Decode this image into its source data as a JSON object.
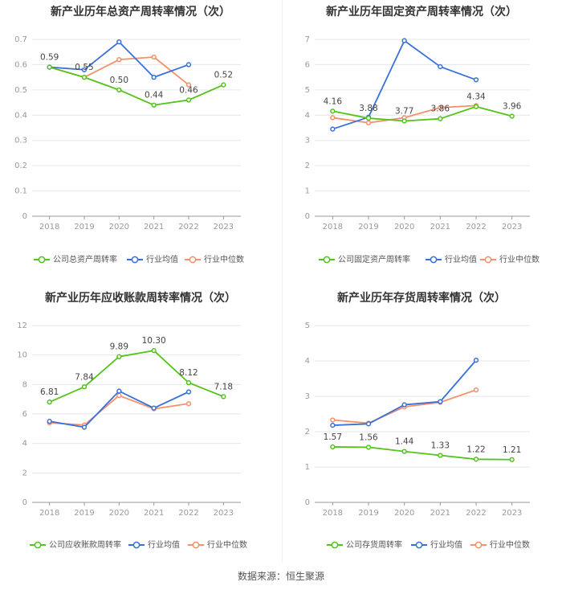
{
  "source": "数据来源：恒生聚源",
  "colors": {
    "company": "#52c41a",
    "avg": "#3a70d9",
    "median": "#f4906a",
    "grid": "#e6e6e6",
    "axis": "#999999"
  },
  "chart_data": [
    {
      "type": "line",
      "title": "新产业历年总资产周转率情况（次）",
      "x": [
        "2018",
        "2019",
        "2020",
        "2021",
        "2022",
        "2023"
      ],
      "yticks": [
        "0",
        "0.1",
        "0.2",
        "0.3",
        "0.4",
        "0.5",
        "0.6",
        "0.7"
      ],
      "ylim": [
        0,
        0.7
      ],
      "legend_placement": "bottom",
      "series": [
        {
          "name": "公司总资产周转率",
          "key": "company",
          "values": [
            0.59,
            0.55,
            0.5,
            0.44,
            0.46,
            0.52
          ],
          "labels": [
            "0.59",
            "0.55",
            "0.50",
            "0.44",
            "0.46",
            "0.52"
          ]
        },
        {
          "name": "行业均值",
          "key": "avg",
          "values": [
            0.59,
            0.58,
            0.69,
            0.55,
            0.6,
            null
          ]
        },
        {
          "name": "行业中位数",
          "key": "median",
          "values": [
            0.59,
            0.55,
            0.62,
            0.63,
            0.52,
            null
          ]
        }
      ]
    },
    {
      "type": "line",
      "title": "新产业历年固定资产周转率情况（次）",
      "x": [
        "2018",
        "2019",
        "2020",
        "2021",
        "2022",
        "2023"
      ],
      "yticks": [
        "0",
        "1",
        "2",
        "3",
        "4",
        "5",
        "6",
        "7"
      ],
      "ylim": [
        0,
        7
      ],
      "legend_placement": "bottom",
      "series": [
        {
          "name": "公司固定资产周转率",
          "key": "company",
          "values": [
            4.16,
            3.88,
            3.77,
            3.86,
            4.34,
            3.96
          ],
          "labels": [
            "4.16",
            "3.88",
            "3.77",
            "3.86",
            "4.34",
            "3.96"
          ]
        },
        {
          "name": "行业均值",
          "key": "avg",
          "values": [
            3.45,
            3.92,
            6.95,
            5.92,
            5.4,
            null
          ]
        },
        {
          "name": "行业中位数",
          "key": "median",
          "values": [
            3.9,
            3.7,
            3.9,
            4.3,
            4.38,
            null
          ]
        }
      ]
    },
    {
      "type": "line",
      "title": "新产业历年应收账款周转率情况（次）",
      "x": [
        "2018",
        "2019",
        "2020",
        "2021",
        "2022",
        "2023"
      ],
      "yticks": [
        "0",
        "2",
        "4",
        "6",
        "8",
        "10",
        "12"
      ],
      "ylim": [
        0,
        12
      ],
      "legend_placement": "bottom",
      "series": [
        {
          "name": "公司应收账款周转率",
          "key": "company",
          "values": [
            6.81,
            7.84,
            9.89,
            10.3,
            8.12,
            7.18
          ],
          "labels": [
            "6.81",
            "7.84",
            "9.89",
            "10.30",
            "8.12",
            "7.18"
          ]
        },
        {
          "name": "行业均值",
          "key": "avg",
          "values": [
            5.5,
            5.1,
            7.55,
            6.4,
            7.5,
            null
          ]
        },
        {
          "name": "行业中位数",
          "key": "median",
          "values": [
            5.4,
            5.25,
            7.25,
            6.35,
            6.7,
            null
          ]
        }
      ]
    },
    {
      "type": "line",
      "title": "新产业历年存货周转率情况（次）",
      "x": [
        "2018",
        "2019",
        "2020",
        "2021",
        "2022",
        "2023"
      ],
      "yticks": [
        "0",
        "1",
        "2",
        "3",
        "4",
        "5"
      ],
      "ylim": [
        0,
        5
      ],
      "legend_placement": "bottom",
      "series": [
        {
          "name": "公司存货周转率",
          "key": "company",
          "values": [
            1.57,
            1.56,
            1.44,
            1.33,
            1.22,
            1.21
          ],
          "labels": [
            "1.57",
            "1.56",
            "1.44",
            "1.33",
            "1.22",
            "1.21"
          ]
        },
        {
          "name": "行业均值",
          "key": "avg",
          "values": [
            2.18,
            2.22,
            2.76,
            2.85,
            4.02,
            null
          ]
        },
        {
          "name": "行业中位数",
          "key": "median",
          "values": [
            2.33,
            2.24,
            2.7,
            2.83,
            3.18,
            null
          ]
        }
      ]
    }
  ]
}
